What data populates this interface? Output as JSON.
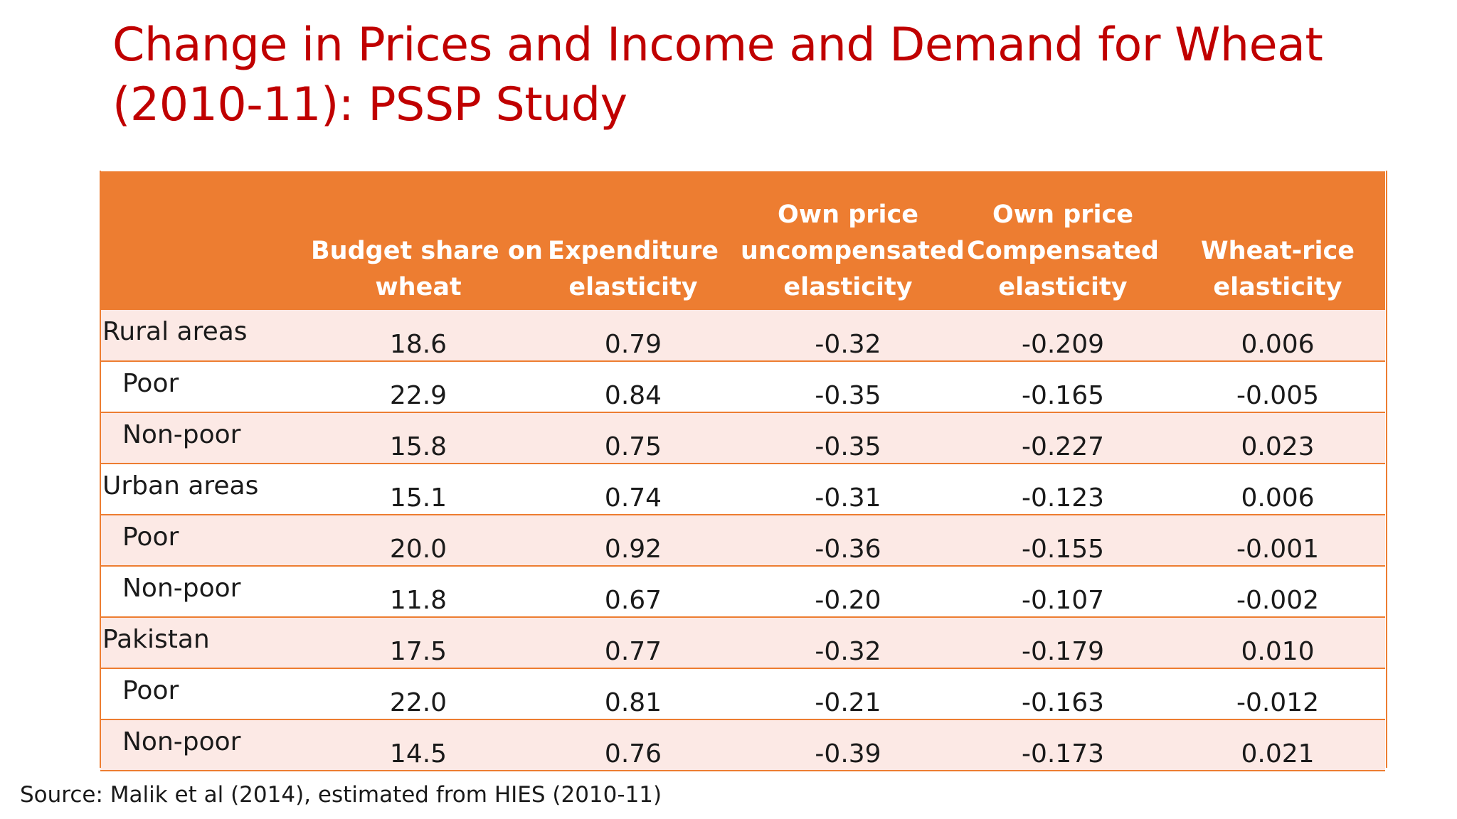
{
  "title": {
    "line1": "Change in Prices and Income and Demand for Wheat",
    "line2": "(2010-11): PSSP Study"
  },
  "table": {
    "headers": [
      {
        "lines": [
          "",
          ""
        ]
      },
      {
        "lines": [
          "",
          "Budget share on",
          "wheat"
        ]
      },
      {
        "lines": [
          "",
          "Expenditure",
          "elasticity"
        ]
      },
      {
        "lines": [
          "Own price",
          "uncompensated",
          "elasticity"
        ]
      },
      {
        "lines": [
          "Own price",
          "Compensated",
          "elasticity"
        ]
      },
      {
        "lines": [
          "",
          "Wheat-rice",
          "elasticity"
        ]
      }
    ],
    "rows": [
      {
        "label": "Rural areas",
        "sub": false,
        "values": [
          "18.6",
          "0.79",
          "-0.32",
          "-0.209",
          "0.006"
        ]
      },
      {
        "label": "Poor",
        "sub": true,
        "values": [
          "22.9",
          "0.84",
          "-0.35",
          "-0.165",
          "-0.005"
        ]
      },
      {
        "label": "Non-poor",
        "sub": true,
        "values": [
          "15.8",
          "0.75",
          "-0.35",
          "-0.227",
          "0.023"
        ]
      },
      {
        "label": "Urban areas",
        "sub": false,
        "values": [
          "15.1",
          "0.74",
          "-0.31",
          "-0.123",
          "0.006"
        ]
      },
      {
        "label": "Poor",
        "sub": true,
        "values": [
          "20.0",
          "0.92",
          "-0.36",
          "-0.155",
          "-0.001"
        ]
      },
      {
        "label": "Non-poor",
        "sub": true,
        "values": [
          "11.8",
          "0.67",
          "-0.20",
          "-0.107",
          "-0.002"
        ]
      },
      {
        "label": "Pakistan",
        "sub": false,
        "values": [
          "17.5",
          "0.77",
          "-0.32",
          "-0.179",
          "0.010"
        ]
      },
      {
        "label": "Poor",
        "sub": true,
        "values": [
          "22.0",
          "0.81",
          "-0.21",
          "-0.163",
          "-0.012"
        ]
      },
      {
        "label": "Non-poor",
        "sub": true,
        "values": [
          "14.5",
          "0.76",
          "-0.39",
          "-0.173",
          "0.021"
        ]
      }
    ]
  },
  "source": "Source: Malik et al (2014), estimated from HIES (2010-11)",
  "colors": {
    "title": "#c00000",
    "header_bg": "#ed7d31",
    "header_text": "#ffffff",
    "band_row": "#fce9e5",
    "plain_row": "#ffffff",
    "rule": "#ed7d31"
  }
}
